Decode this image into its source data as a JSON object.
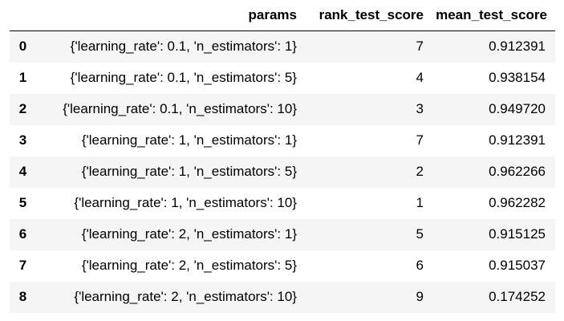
{
  "table": {
    "headers": {
      "index": "",
      "params": "params",
      "rank": "rank_test_score",
      "mean": "mean_test_score"
    },
    "rows": [
      {
        "index": "0",
        "params": "{'learning_rate': 0.1, 'n_estimators': 1}",
        "rank": "7",
        "mean": "0.912391"
      },
      {
        "index": "1",
        "params": "{'learning_rate': 0.1, 'n_estimators': 5}",
        "rank": "4",
        "mean": "0.938154"
      },
      {
        "index": "2",
        "params": "{'learning_rate': 0.1, 'n_estimators': 10}",
        "rank": "3",
        "mean": "0.949720"
      },
      {
        "index": "3",
        "params": "{'learning_rate': 1, 'n_estimators': 1}",
        "rank": "7",
        "mean": "0.912391"
      },
      {
        "index": "4",
        "params": "{'learning_rate': 1, 'n_estimators': 5}",
        "rank": "2",
        "mean": "0.962266"
      },
      {
        "index": "5",
        "params": "{'learning_rate': 1, 'n_estimators': 10}",
        "rank": "1",
        "mean": "0.962282"
      },
      {
        "index": "6",
        "params": "{'learning_rate': 2, 'n_estimators': 1}",
        "rank": "5",
        "mean": "0.915125"
      },
      {
        "index": "7",
        "params": "{'learning_rate': 2, 'n_estimators': 5}",
        "rank": "6",
        "mean": "0.915037"
      },
      {
        "index": "8",
        "params": "{'learning_rate': 2, 'n_estimators': 10}",
        "rank": "9",
        "mean": "0.174252"
      }
    ]
  },
  "colors": {
    "striped_row_background": "#f5f5f5",
    "header_rule": "#000000",
    "text": "#000000"
  }
}
